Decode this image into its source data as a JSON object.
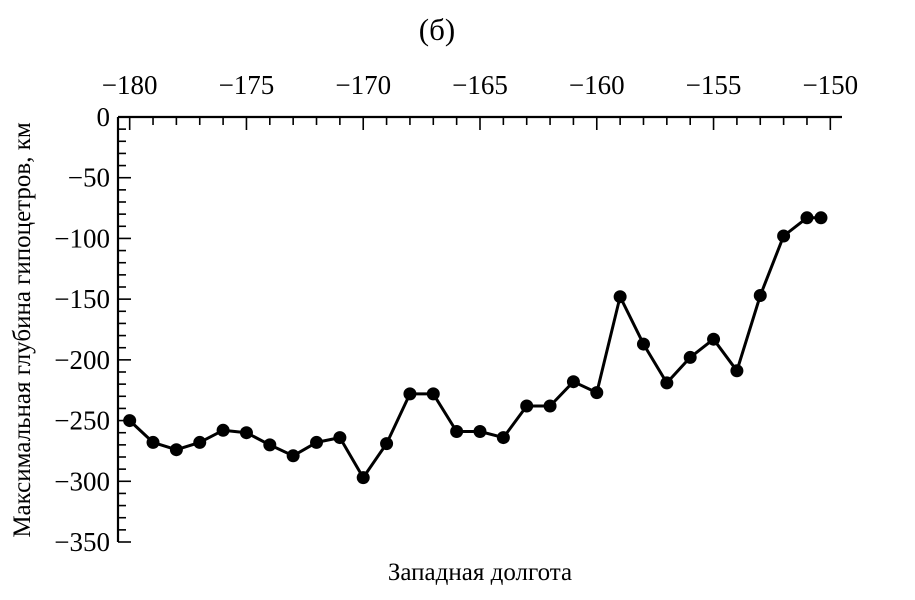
{
  "chart_data": {
    "type": "line",
    "title": "(б)",
    "xlabel": "Западная долгота",
    "ylabel": "Максимальная глубина гипоцетров, км",
    "x_axis_position": "top",
    "xlim": [
      -180.5,
      -149.5
    ],
    "ylim": [
      -350,
      0
    ],
    "x_major_ticks": [
      -180,
      -175,
      -170,
      -165,
      -160,
      -155,
      -150
    ],
    "x_tick_labels": [
      "−180",
      "−175",
      "−170",
      "−165",
      "−160",
      "−155",
      "−150"
    ],
    "y_major_ticks": [
      0,
      -50,
      -100,
      -150,
      -200,
      -250,
      -300,
      -350
    ],
    "y_tick_labels": [
      "0",
      "−50",
      "−100",
      "−150",
      "−200",
      "−250",
      "−300",
      "−350"
    ],
    "grid": false,
    "series": [
      {
        "color": "#000000",
        "x": [
          -180,
          -179,
          -178,
          -177,
          -176,
          -175,
          -174,
          -173,
          -172,
          -171,
          -170,
          -169,
          -168,
          -167,
          -166,
          -165,
          -164,
          -163,
          -162,
          -161,
          -160,
          -159,
          -158,
          -157,
          -156,
          -155,
          -154,
          -153,
          -152,
          -151,
          -150.4
        ],
        "y": [
          -250,
          -268,
          -274,
          -268,
          -258,
          -260,
          -270,
          -279,
          -268,
          -264,
          -297,
          -269,
          -228,
          -228,
          -259,
          -259,
          -264,
          -238,
          -238,
          -218,
          -227,
          -148,
          -187,
          -219,
          -198,
          -183,
          -209,
          -147,
          -98,
          -83,
          -83
        ]
      }
    ]
  }
}
